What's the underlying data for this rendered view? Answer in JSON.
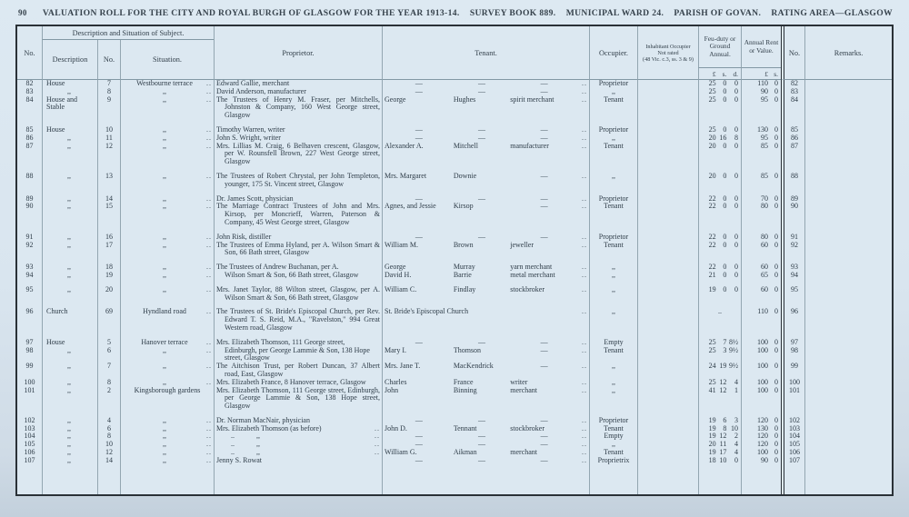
{
  "page": {
    "number": "90"
  },
  "title": {
    "segments": [
      "VALUATION ROLL FOR THE CITY AND ROYAL BURGH OF GLASGOW FOR THE YEAR 1913-14.",
      "SURVEY BOOK 889.",
      "MUNICIPAL WARD 24.",
      "PARISH OF GOVAN.",
      "RATING AREA—GLASGOW"
    ]
  },
  "table": {
    "headers": {
      "no": "No.",
      "dss": "Description and Situation of Subject.",
      "desc": "Description",
      "stno": "No.",
      "sit": "Situation.",
      "prop": "Proprietor.",
      "ten": "Tenant.",
      "occ": "Occupier.",
      "inhab1": "Inhabitant Occupier",
      "inhab2": "Not rated",
      "inhab3": "(48 Vic. c.3, ss. 3 & 9)",
      "feu": "Feu-duty or Ground Annual.",
      "rent": "Annual Rent or Value.",
      "no2": "No.",
      "rem": "Remarks."
    },
    "currency": {
      "feu": [
        "£",
        "s.",
        "d."
      ],
      "rent": [
        "£",
        "s."
      ]
    },
    "rows": [
      {
        "no": "82",
        "desc": "House",
        "stno": "7",
        "sit": "Westbourne terrace",
        "sitd": "..",
        "prop": "Edward Gallie, merchant",
        "tf": "—",
        "tl": "—",
        "to": "—",
        "tend": "..",
        "occ": "Proprietor",
        "feu": [
          "25",
          "0",
          "0"
        ],
        "rent": [
          "110",
          "0"
        ]
      },
      {
        "no": "83",
        "desc": ",,",
        "stno": "8",
        "sit": ",,",
        "sitd": "..",
        "prop": "David Anderson, manufacturer",
        "tf": "—",
        "tl": "—",
        "to": "—",
        "tend": "..",
        "occ": ",,",
        "feu": [
          "25",
          "0",
          "0"
        ],
        "rent": [
          "90",
          "0"
        ]
      },
      {
        "no": "84",
        "desc": "House and Stable",
        "stno": "9",
        "sit": ",,",
        "sitd": "..",
        "prop": "The Trustees of Henry M. Fraser, per Mitchells, Johnston & Company, 160 West George street, Glasgow",
        "tf": "George",
        "tl": "Hughes",
        "to": "spirit merchant",
        "tend": "..",
        "occ": "Tenant",
        "feu": [
          "25",
          "0",
          "0"
        ],
        "rent": [
          "95",
          "0"
        ]
      },
      {
        "no": "85",
        "gap": 1,
        "desc": "House",
        "stno": "10",
        "sit": ",,",
        "sitd": "..",
        "prop": "Timothy Warren, writer",
        "tf": "—",
        "tl": "—",
        "to": "—",
        "tend": "..",
        "occ": "Proprietor",
        "feu": [
          "25",
          "0",
          "0"
        ],
        "rent": [
          "130",
          "0"
        ]
      },
      {
        "no": "86",
        "desc": ",,",
        "stno": "11",
        "sit": ",,",
        "sitd": "..",
        "prop": "John S. Wright, writer",
        "tf": "—",
        "tl": "—",
        "to": "—",
        "tend": "..",
        "occ": ",,",
        "feu": [
          "20",
          "16",
          "8"
        ],
        "rent": [
          "95",
          "0"
        ]
      },
      {
        "no": "87",
        "desc": ",,",
        "stno": "12",
        "sit": ",,",
        "sitd": "..",
        "prop": "Mrs. Lillias M. Craig, 6 Belhaven crescent, Glasgow, per W. Rounsfell Brown, 227 West George street, Glasgow",
        "tf": "Alexander A.",
        "tl": "Mitchell",
        "to": "manufacturer",
        "tend": "..",
        "occ": "Tenant",
        "feu": [
          "20",
          "0",
          "0"
        ],
        "rent": [
          "85",
          "0"
        ]
      },
      {
        "no": "88",
        "gap": 1,
        "desc": ",,",
        "stno": "13",
        "sit": ",,",
        "sitd": "..",
        "prop": "The Trustees of Robert Chrystal, per John Templeton, younger, 175 St. Vincent street, Glasgow",
        "tf": "Mrs. Margaret",
        "tl": "Downie",
        "to": "—",
        "tend": "..",
        "occ": ",,",
        "feu": [
          "20",
          "0",
          "0"
        ],
        "rent": [
          "85",
          "0"
        ]
      },
      {
        "no": "89",
        "gap": 1,
        "desc": ",,",
        "stno": "14",
        "sit": ",,",
        "sitd": "..",
        "prop": "Dr. James Scott, physician",
        "tf": "—",
        "tl": "—",
        "to": "—",
        "tend": "..",
        "occ": "Proprietor",
        "feu": [
          "22",
          "0",
          "0"
        ],
        "rent": [
          "70",
          "0"
        ]
      },
      {
        "no": "90",
        "desc": ",,",
        "stno": "15",
        "sit": ",,",
        "sitd": "..",
        "prop": "The Marriage Contract Trustees of John and Mrs. Kirsop, per Moncrieff, Warren, Paterson & Company, 45 West George street, Glasgow",
        "tf": "Agnes, and Jessie",
        "tl": "Kirsop",
        "to": "—",
        "tend": "..",
        "occ": "Tenant",
        "feu": [
          "22",
          "0",
          "0"
        ],
        "rent": [
          "80",
          "0"
        ]
      },
      {
        "no": "91",
        "gap": 1,
        "desc": ",,",
        "stno": "16",
        "sit": ",,",
        "sitd": "..",
        "prop": "John Risk, distiller",
        "tf": "—",
        "tl": "—",
        "to": "—",
        "tend": "..",
        "occ": "Proprietor",
        "feu": [
          "22",
          "0",
          "0"
        ],
        "rent": [
          "80",
          "0"
        ]
      },
      {
        "no": "92",
        "desc": ",,",
        "stno": "17",
        "sit": ",,",
        "sitd": "..",
        "prop": "The Trustees of Emma Hyland, per A. Wilson Smart & Son, 66 Bath street, Glasgow",
        "tf": "William M.",
        "tl": "Brown",
        "to": "jeweller",
        "tend": "..",
        "occ": "Tenant",
        "feu": [
          "22",
          "0",
          "0"
        ],
        "rent": [
          "60",
          "0"
        ]
      },
      {
        "no": "93",
        "gap": 1,
        "desc": ",,",
        "stno": "18",
        "sit": ",,",
        "sitd": "..",
        "prop": "The Trustees of Andrew Buchanan, per A.",
        "tf": "George",
        "tl": "Murray",
        "to": "yarn merchant",
        "tend": "..",
        "occ": ",,",
        "feu": [
          "22",
          "0",
          "0"
        ],
        "rent": [
          "60",
          "0"
        ]
      },
      {
        "no": "94",
        "desc": ",,",
        "stno": "19",
        "sit": ",,",
        "sitd": "..",
        "prop": "Wilson Smart & Son, 66 Bath street, Glasgow",
        "propCont": 1,
        "tf": "David H.",
        "tl": "Barrie",
        "to": "metal merchant",
        "tend": "..",
        "occ": ",,",
        "feu": [
          "21",
          "0",
          "0"
        ],
        "rent": [
          "65",
          "0"
        ]
      },
      {
        "no": "95",
        "gap": 1,
        "desc": ",,",
        "stno": "20",
        "sit": ",,",
        "sitd": "..",
        "prop": "Mrs. Janet Taylor, 88 Wilton street, Glasgow, per A. Wilson Smart & Son, 66 Bath street, Glasgow",
        "tf": "William C.",
        "tl": "Findlay",
        "to": "stockbroker",
        "tend": "..",
        "occ": ",,",
        "feu": [
          "19",
          "0",
          "0"
        ],
        "rent": [
          "60",
          "0"
        ]
      },
      {
        "no": "96",
        "gap": 1,
        "desc": "Church",
        "stno": "69",
        "sit": "Hyndland road",
        "sitd": "..",
        "prop": "The Trustees of St. Bride's Episcopal Church, per Rev. Edward T. S. Reid, M.A., \"Ravelston,\" 994 Great Western road, Glasgow",
        "tenWide": "St. Bride's Episcopal Church",
        "tend": "..",
        "occ": ",,",
        "feu": "..",
        "rent": [
          "110",
          "0"
        ]
      },
      {
        "no": "97",
        "gap": 1,
        "desc": "House",
        "stno": "5",
        "sit": "Hanover terrace",
        "sitd": "..",
        "prop": "Mrs. Elizabeth Thomson, 111 George street,",
        "tf": "—",
        "tl": "—",
        "to": "—",
        "tend": "..",
        "occ": "Empty",
        "feu": [
          "25",
          "7",
          "8½"
        ],
        "rent": [
          "100",
          "0"
        ]
      },
      {
        "no": "98",
        "desc": ",,",
        "stno": "6",
        "sit": ",,",
        "sitd": "..",
        "prop": "Edinburgh, per George Lammie & Son, 138 Hope street, Glasgow",
        "propCont": 1,
        "tf": "Mary I.",
        "tl": "Thomson",
        "to": "—",
        "tend": "..",
        "occ": "Tenant",
        "feu": [
          "25",
          "3",
          "9½"
        ],
        "rent": [
          "100",
          "0"
        ]
      },
      {
        "no": "99",
        "desc": ",,",
        "stno": "7",
        "sit": ",,",
        "sitd": "..",
        "prop": "The Aitchison Trust, per Robert Duncan, 37 Albert road, East, Glasgow",
        "tf": "Mrs. Jane T.",
        "tl": "MacKendrick",
        "to": "—",
        "tend": "..",
        "occ": ",,",
        "feu": [
          "24",
          "19",
          "9½"
        ],
        "rent": [
          "100",
          "0"
        ]
      },
      {
        "no": "100",
        "desc": ",,",
        "stno": "8",
        "sit": ",,",
        "sitd": "..",
        "prop": "Mrs. Elizabeth France, 8 Hanover terrace, Glasgow",
        "tf": "Charles",
        "tl": "France",
        "to": "writer",
        "tend": "..",
        "occ": ",,",
        "feu": [
          "25",
          "12",
          "4"
        ],
        "rent": [
          "100",
          "0"
        ]
      },
      {
        "no": "101",
        "desc": ",,",
        "stno": "2",
        "sit": "Kingsborough gardens",
        "sitd": "",
        "prop": "Mrs. Elizabeth Thomson, 111 George street, Edinburgh, per George Lammie & Son, 138 Hope street, Glasgow",
        "tf": "John",
        "tl": "Binning",
        "to": "merchant",
        "tend": "..",
        "occ": ",,",
        "feu": [
          "41",
          "12",
          "1"
        ],
        "rent": [
          "100",
          "0"
        ]
      },
      {
        "no": "102",
        "gap": 1,
        "desc": ",,",
        "stno": "4",
        "sit": ",,",
        "sitd": "..",
        "prop": "Dr. Norman MacNair, physician",
        "tf": "—",
        "tl": "—",
        "to": "—",
        "tend": "..",
        "occ": "Proprietor",
        "feu": [
          "19",
          "6",
          "3"
        ],
        "rent": [
          "120",
          "0"
        ]
      },
      {
        "no": "103",
        "desc": ",,",
        "stno": "6",
        "sit": ",,",
        "sitd": "..",
        "prop": "Mrs. Elizabeth Thomson (as before)",
        "propDots": "..",
        "tf": "John D.",
        "tl": "Tennant",
        "to": "stockbroker",
        "tend": "..",
        "occ": "Tenant",
        "feu": [
          "19",
          "8",
          "10"
        ],
        "rent": [
          "130",
          "0"
        ]
      },
      {
        "no": "104",
        "desc": ",,",
        "stno": "8",
        "sit": ",,",
        "sitd": "..",
        "prop": "..   ,,",
        "propPre": 1,
        "propDots": "..",
        "tf": "—",
        "tl": "—",
        "to": "—",
        "tend": "..",
        "occ": "Empty",
        "feu": [
          "19",
          "12",
          "2"
        ],
        "rent": [
          "120",
          "0"
        ]
      },
      {
        "no": "105",
        "desc": ",,",
        "stno": "10",
        "sit": ",,",
        "sitd": "..",
        "prop": "..   ,,",
        "propPre": 1,
        "propDots": "..",
        "tf": "—",
        "tl": "—",
        "to": "—",
        "tend": "..",
        "occ": ",,",
        "feu": [
          "20",
          "11",
          "4"
        ],
        "rent": [
          "120",
          "0"
        ]
      },
      {
        "no": "106",
        "desc": ",,",
        "stno": "12",
        "sit": ",,",
        "sitd": "..",
        "prop": "..   ,,",
        "propPre": 1,
        "propDots": "..",
        "tf": "William G.",
        "tl": "Aikman",
        "to": "merchant",
        "tend": "..",
        "occ": "Tenant",
        "feu": [
          "19",
          "17",
          "4"
        ],
        "rent": [
          "100",
          "0"
        ]
      },
      {
        "no": "107",
        "desc": ",,",
        "stno": "14",
        "sit": ",,",
        "sitd": "..",
        "prop": "Jenny S. Rowat",
        "tf": "—",
        "tl": "—",
        "to": "—",
        "tend": "..",
        "occ": "Proprietrix",
        "feu": [
          "18",
          "10",
          "0"
        ],
        "rent": [
          "90",
          "0"
        ]
      }
    ]
  }
}
